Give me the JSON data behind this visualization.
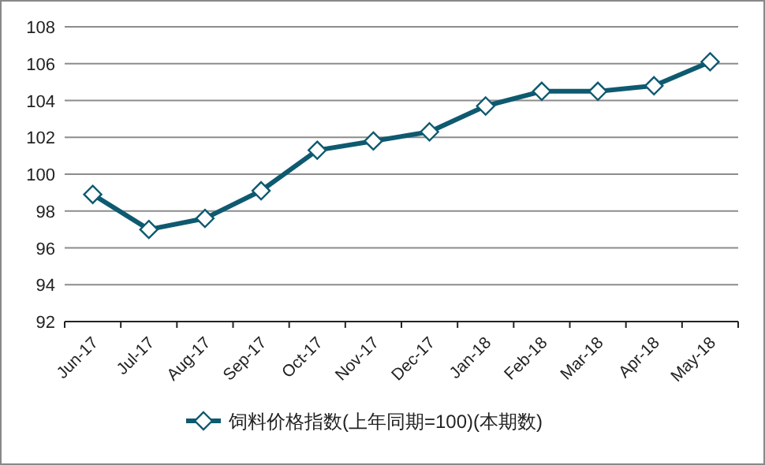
{
  "chart_data": {
    "type": "line",
    "categories": [
      "Jun-17",
      "Jul-17",
      "Aug-17",
      "Sep-17",
      "Oct-17",
      "Nov-17",
      "Dec-17",
      "Jan-18",
      "Feb-18",
      "Mar-18",
      "Apr-18",
      "May-18"
    ],
    "series": [
      {
        "name": "饲料价格指数(上年同期=100)(本期数)",
        "color": "#0e5a70",
        "values": [
          98.9,
          97.0,
          97.6,
          99.1,
          101.3,
          101.8,
          102.3,
          103.7,
          104.5,
          104.5,
          104.8,
          106.1
        ]
      }
    ],
    "ylim": [
      92,
      108
    ],
    "yticks": [
      92,
      94,
      96,
      98,
      100,
      102,
      104,
      106,
      108
    ],
    "grid": "y",
    "legend": "bottom",
    "marker": "diamond",
    "line_style": "solid"
  }
}
